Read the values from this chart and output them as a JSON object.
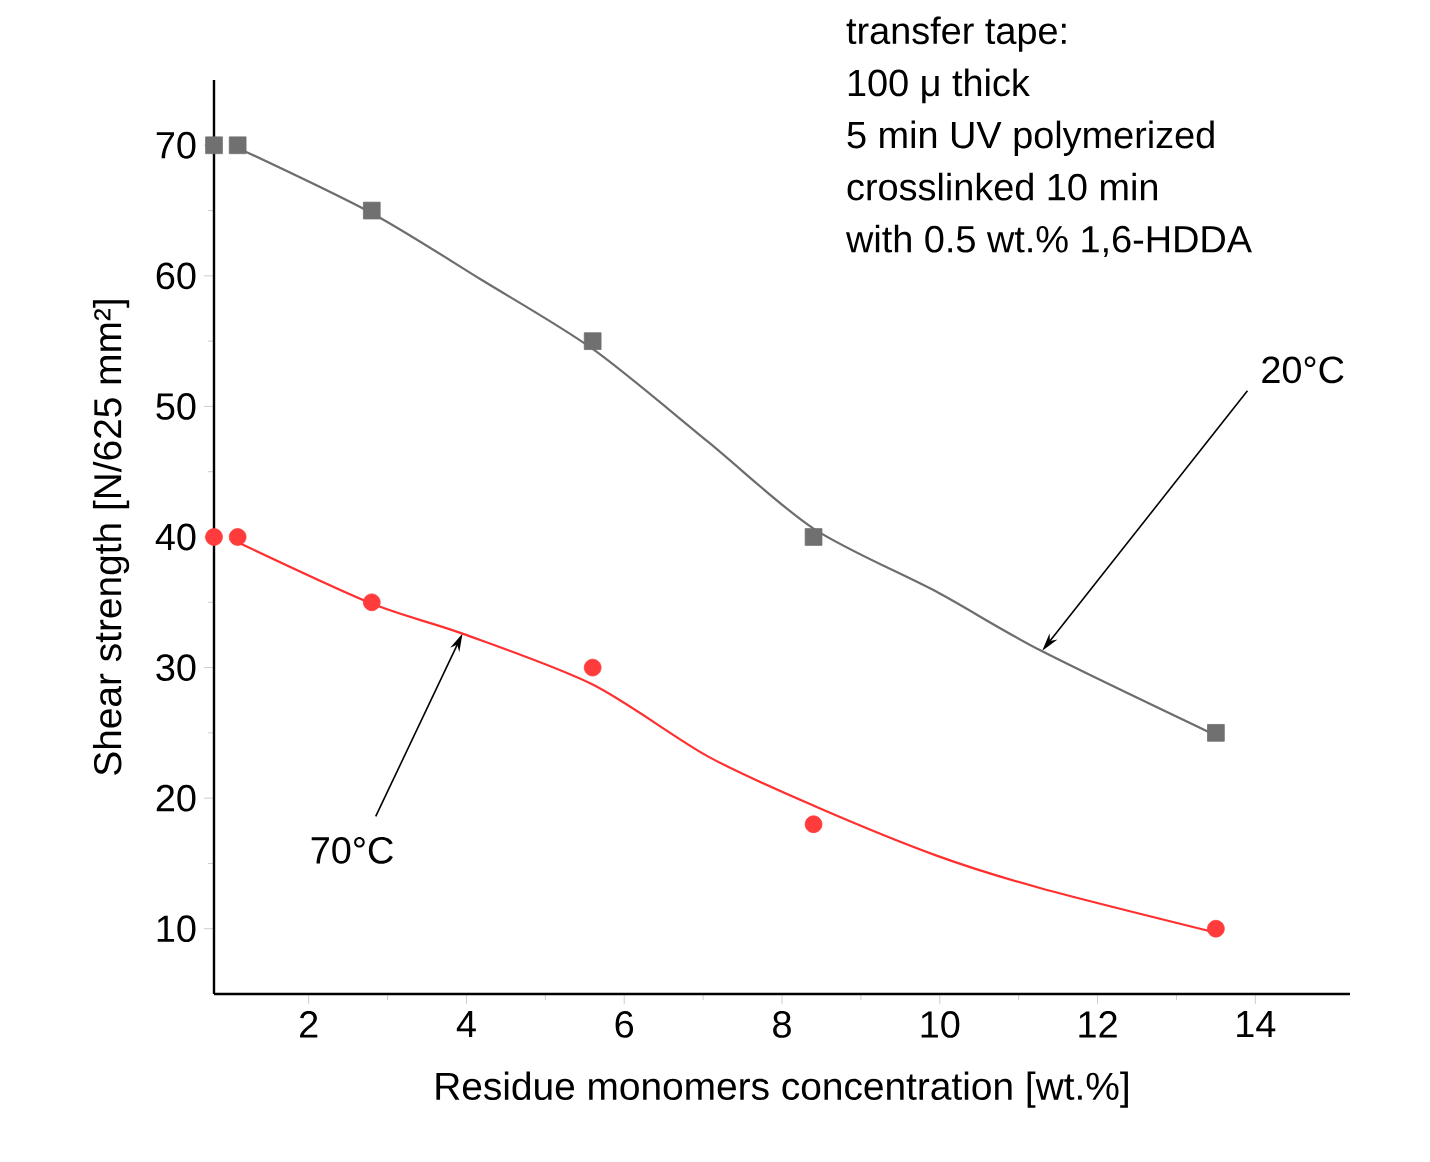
{
  "chart_data": {
    "type": "scatter",
    "xlabel": "Residue monomers concentration [wt.%]",
    "ylabel": "Shear strength [N/625 mm²]",
    "xlim": [
      0.8,
      15.2
    ],
    "xticks": [
      2,
      4,
      6,
      8,
      10,
      12,
      14
    ],
    "ylim": [
      5,
      75
    ],
    "yticks": [
      10,
      20,
      30,
      40,
      50,
      60,
      70
    ],
    "grid": false,
    "series": [
      {
        "type": "scatter",
        "color": "#707070",
        "marker": "square",
        "x": [
          0.8,
          1.1,
          2.8,
          5.6,
          8.4,
          13.5
        ],
        "values": [
          70,
          70,
          65,
          55,
          40,
          25
        ]
      },
      {
        "type": "scatter",
        "color": "#ff3b3b",
        "marker": "circle",
        "x": [
          0.8,
          1.1,
          2.8,
          5.6,
          8.4,
          13.5
        ],
        "values": [
          40,
          40,
          35,
          30,
          18,
          10
        ]
      },
      {
        "type": "line",
        "color": "#6d6d6d",
        "marker": "none",
        "x": [
          1.1,
          2.8,
          4.19,
          5.6,
          7.06,
          8.41,
          9.96,
          11.28,
          13.5
        ],
        "values": [
          69.8,
          64.8,
          59.7,
          54.4,
          47.3,
          40.6,
          35.8,
          31.3,
          24.8
        ]
      },
      {
        "type": "line",
        "color": "#ff3030",
        "marker": "none",
        "x": [
          1.1,
          2.8,
          3.95,
          5.6,
          7.06,
          8.41,
          9.96,
          11.28,
          13.5
        ],
        "values": [
          39.6,
          34.9,
          32.6,
          28.7,
          23.2,
          19.4,
          15.6,
          13.1,
          9.7
        ]
      }
    ],
    "annotations": [
      "transfer tape:",
      "100 μ thick",
      "5 min UV polymerized",
      "crosslinked 10 min",
      "with 0.5 wt.% 1,6-HDDA",
      {
        "text": "20°C",
        "x": 11.3,
        "y": 31.3
      },
      {
        "text": "70°C",
        "x": 3.95,
        "y": 32.6
      }
    ]
  }
}
